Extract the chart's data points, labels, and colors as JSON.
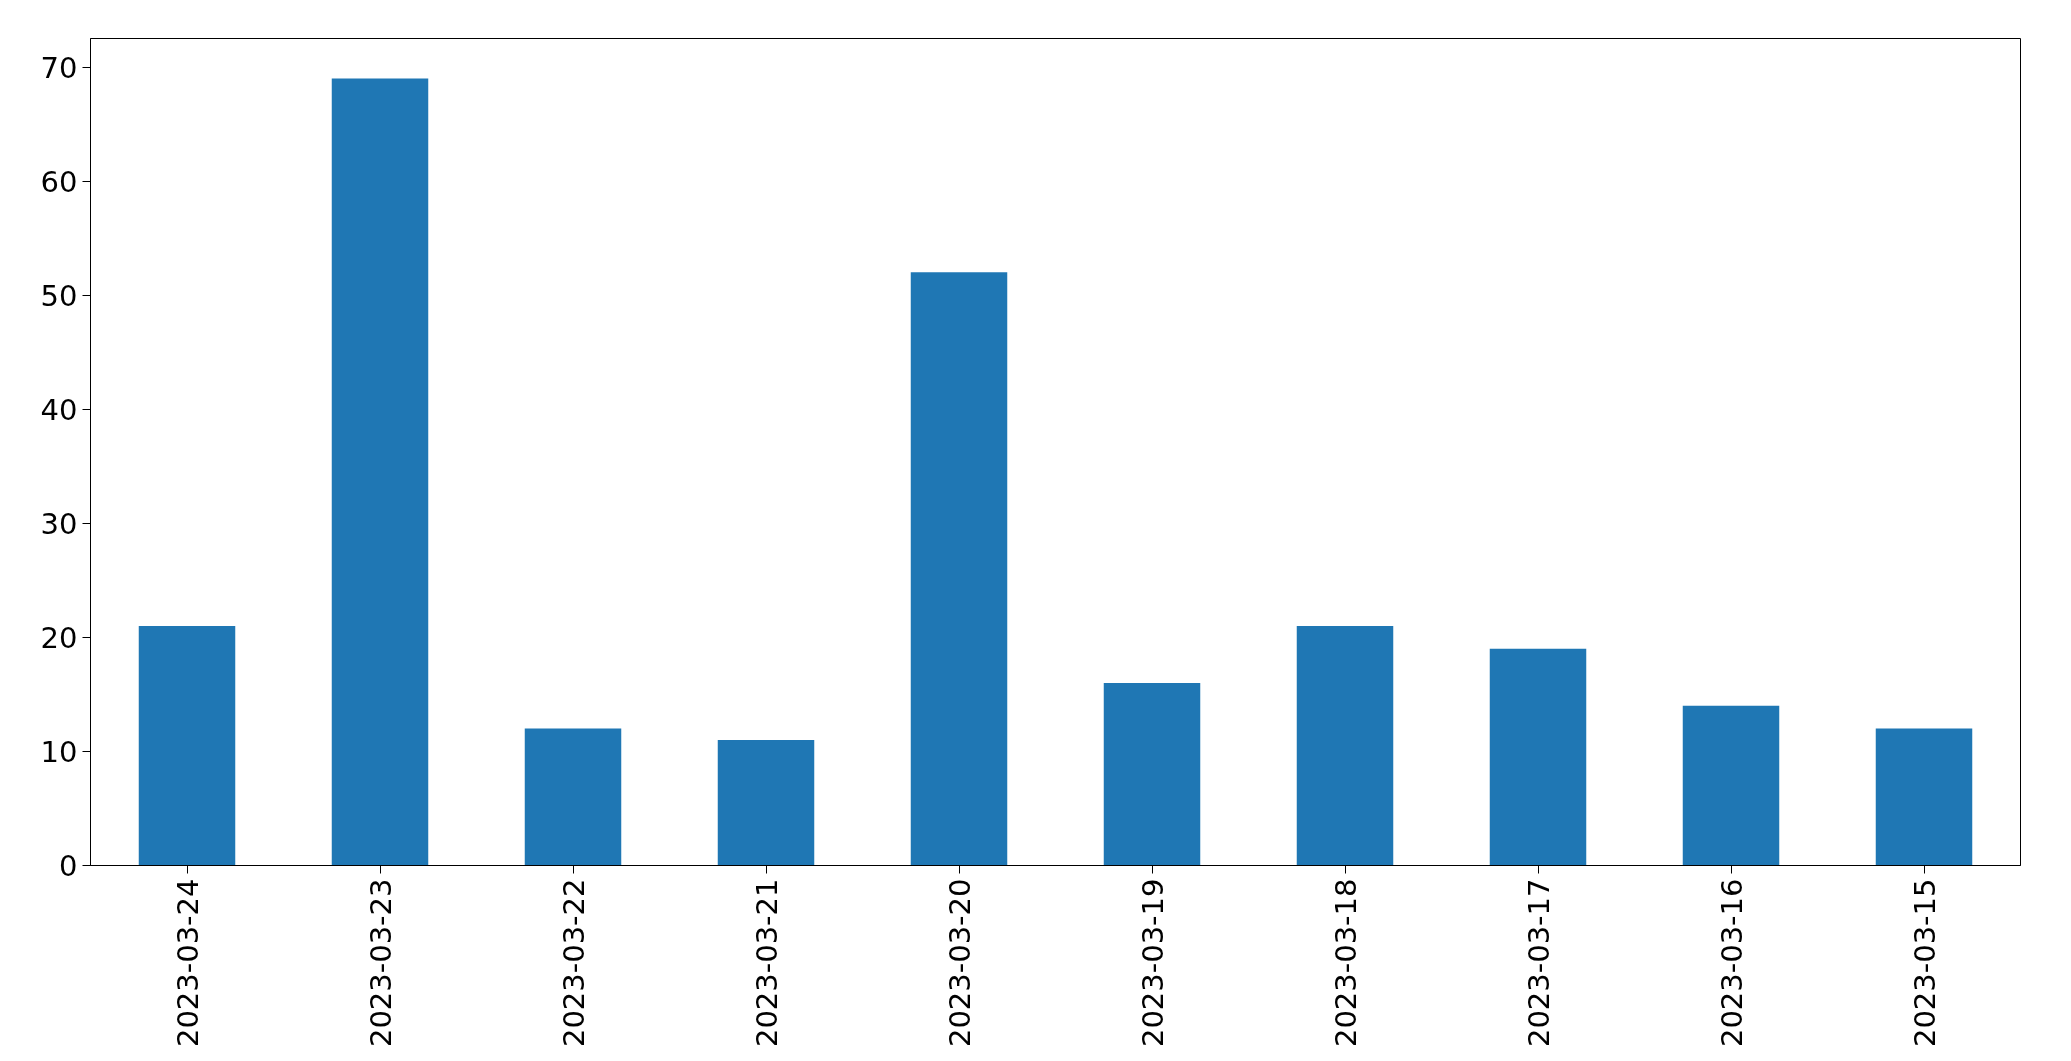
{
  "chart_data": {
    "type": "bar",
    "categories": [
      "2023-03-24",
      "2023-03-23",
      "2023-03-22",
      "2023-03-21",
      "2023-03-20",
      "2023-03-19",
      "2023-03-18",
      "2023-03-17",
      "2023-03-16",
      "2023-03-15"
    ],
    "values": [
      21,
      69,
      12,
      11,
      52,
      16,
      21,
      19,
      14,
      12
    ],
    "color": "#1f77b4",
    "ylim": [
      0,
      72.5
    ],
    "yticks": [
      0,
      10,
      20,
      30,
      40,
      50,
      60,
      70
    ],
    "grid": false
  }
}
